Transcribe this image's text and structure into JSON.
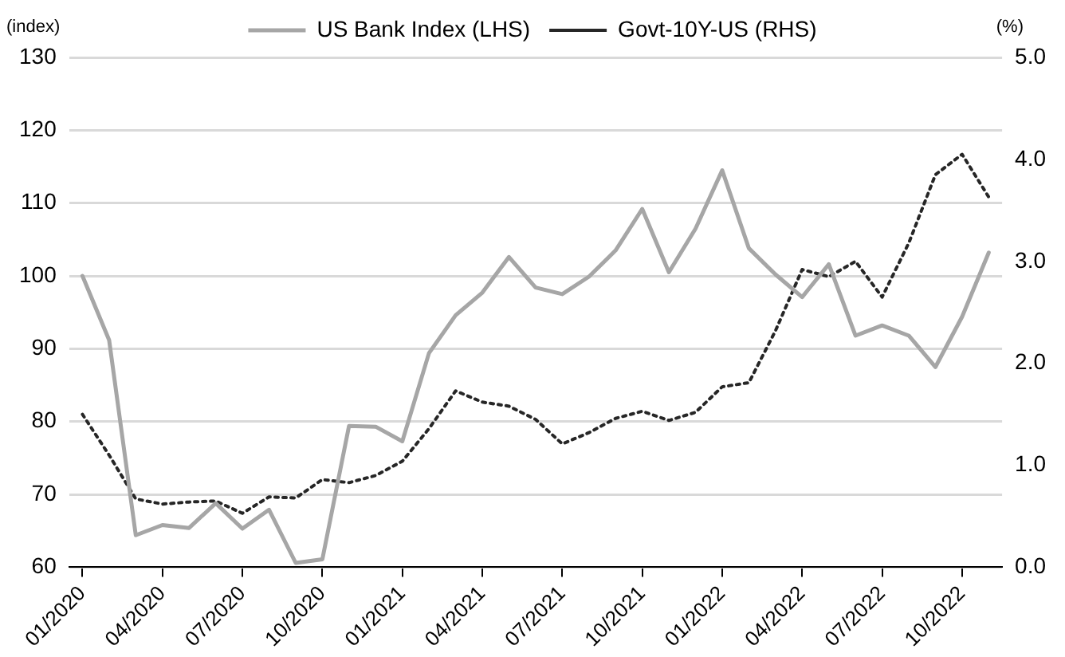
{
  "chart_data": {
    "type": "line",
    "categories": [
      "01/2020",
      null,
      null,
      "04/2020",
      null,
      null,
      "07/2020",
      null,
      null,
      "10/2020",
      null,
      null,
      "01/2021",
      null,
      null,
      "04/2021",
      null,
      null,
      "07/2021",
      null,
      null,
      "10/2021",
      null,
      null,
      "01/2022",
      null,
      null,
      "04/2022",
      null,
      null,
      "07/2022",
      null,
      null,
      "10/2022",
      null
    ],
    "series": [
      {
        "name": "US Bank Index (LHS)",
        "color": "#a6a6a6",
        "line_style": "solid",
        "axis": "y",
        "values": [
          100.0,
          91.2,
          64.4,
          65.8,
          65.4,
          68.8,
          65.3,
          67.9,
          60.6,
          61.1,
          79.4,
          79.3,
          77.3,
          89.4,
          94.6,
          97.7,
          102.6,
          98.4,
          97.5,
          99.9,
          103.5,
          109.2,
          100.5,
          106.5,
          114.5,
          103.8,
          100.2,
          97.1,
          101.6,
          91.8,
          93.2,
          91.8,
          87.5,
          94.4,
          103.2
        ]
      },
      {
        "name": "Govt-10Y-US (RHS)",
        "color": "#262626",
        "line_style": "dotted",
        "axis": "y2",
        "values": [
          1.5,
          1.1,
          0.67,
          0.62,
          0.64,
          0.65,
          0.53,
          0.69,
          0.68,
          0.86,
          0.83,
          0.9,
          1.04,
          1.36,
          1.73,
          1.62,
          1.58,
          1.45,
          1.21,
          1.32,
          1.46,
          1.53,
          1.44,
          1.52,
          1.77,
          1.81,
          2.32,
          2.92,
          2.85,
          3.0,
          2.65,
          3.18,
          3.85,
          4.05,
          3.63
        ]
      }
    ],
    "ylabel": "(index)",
    "y2label": "(%)",
    "ylim": [
      60,
      130
    ],
    "yticks": [
      60,
      70,
      80,
      90,
      100,
      110,
      120,
      130
    ],
    "y2lim": [
      0,
      5
    ],
    "y2ticks": [
      {
        "value": 0,
        "label": "0.0"
      },
      {
        "value": 1,
        "label": "1.0"
      },
      {
        "value": 2,
        "label": "2.0"
      },
      {
        "value": 3,
        "label": "3.0"
      },
      {
        "value": 4,
        "label": "4.0"
      },
      {
        "value": 5,
        "label": "5.0"
      }
    ],
    "grid": "y",
    "legend": "top",
    "marker": "none"
  }
}
